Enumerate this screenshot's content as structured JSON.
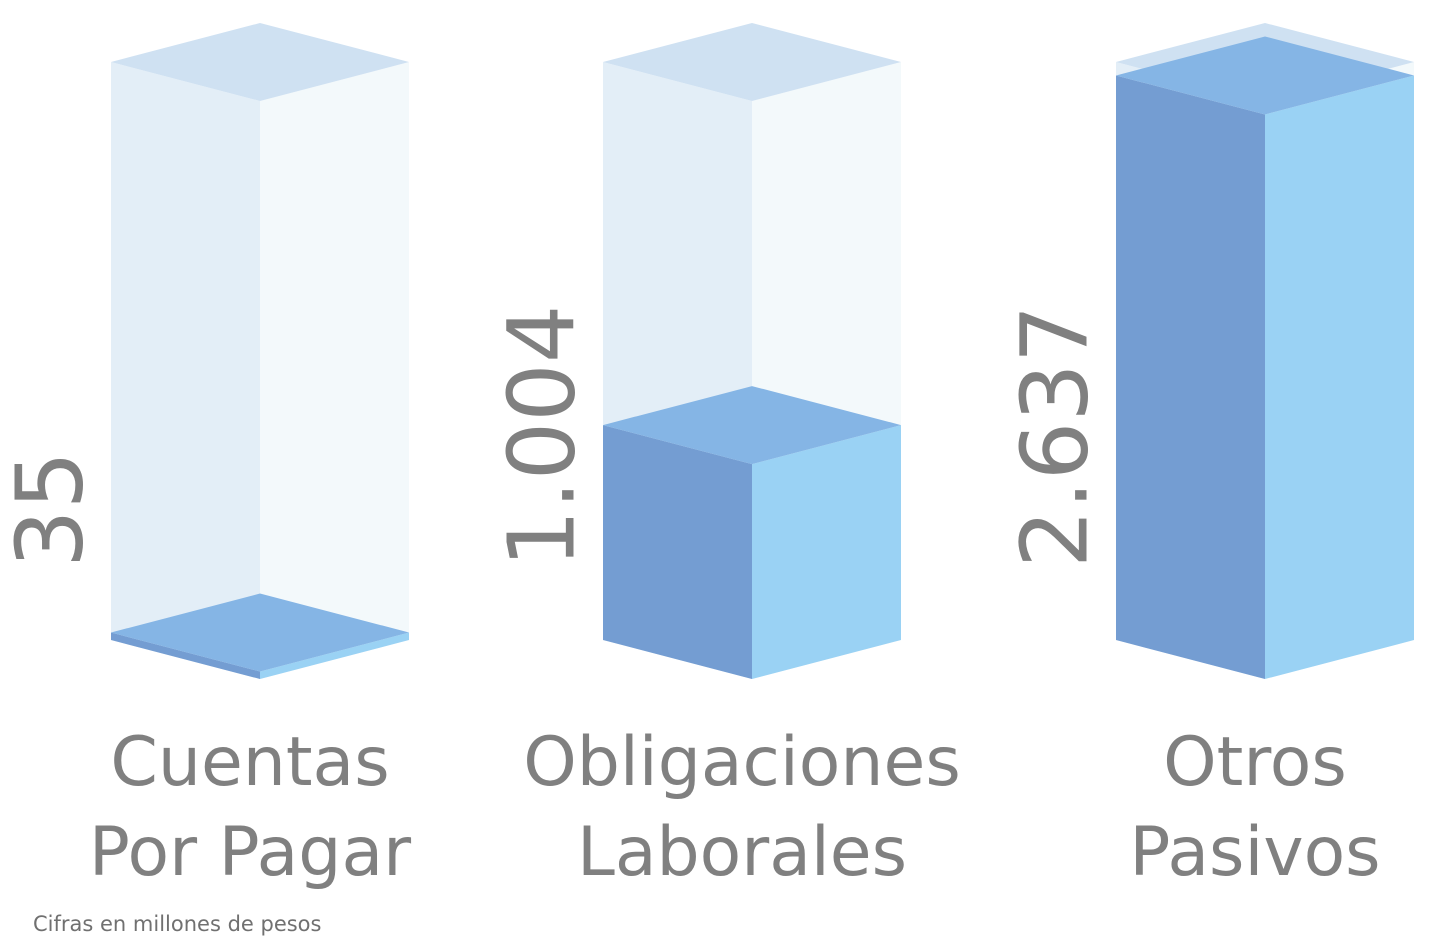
{
  "chart_data": {
    "type": "bar3d",
    "categories": [
      "Cuentas\nPor Pagar",
      "Obligaciones\nLaborales",
      "Otros\nPasivos"
    ],
    "values": [
      35,
      1004,
      2637
    ],
    "value_labels": [
      "35",
      "1.004",
      "2.637"
    ],
    "ylim": [
      0,
      2700
    ],
    "colors": {
      "front": "#749dd2",
      "side": "#9ad2f4",
      "top": "#85b5e5",
      "track_front": "#e3eef7",
      "track_side": "#f3f9fb",
      "track_top": "#cfe1f2"
    },
    "note": "Cifras en millones de pesos"
  }
}
